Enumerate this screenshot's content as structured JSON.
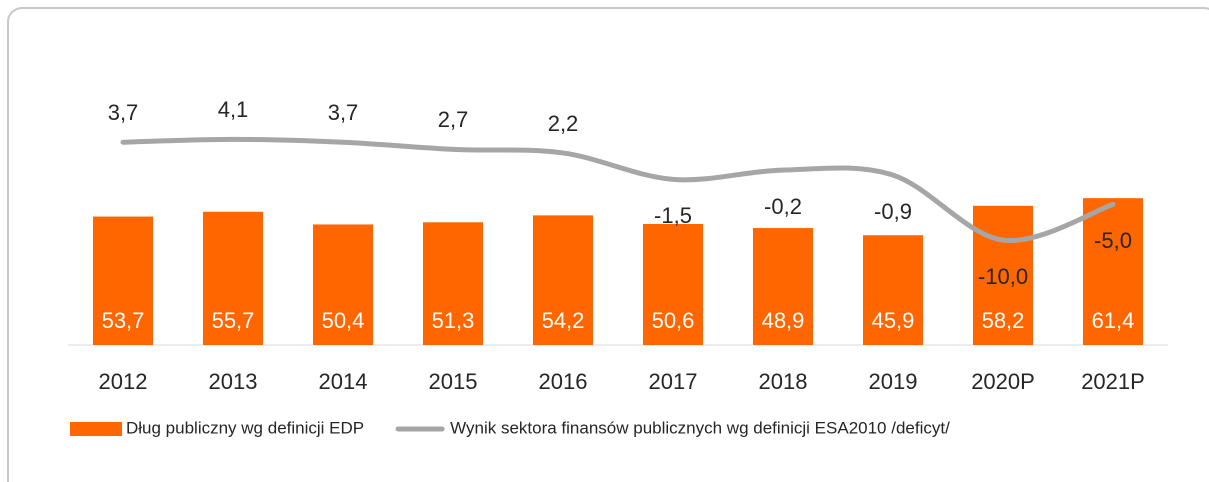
{
  "chart_data": {
    "type": "bar-line",
    "categories": [
      "2012",
      "2013",
      "2014",
      "2015",
      "2016",
      "2017",
      "2018",
      "2019",
      "2020P",
      "2021P"
    ],
    "series": [
      {
        "name": "Dług publiczny wg definicji EDP",
        "type": "bar",
        "color": "#ff6600",
        "values": [
          53.7,
          55.7,
          50.4,
          51.3,
          54.2,
          50.6,
          48.9,
          45.9,
          58.2,
          61.4
        ],
        "value_labels": [
          "53,7",
          "55,7",
          "50,4",
          "51,3",
          "54,2",
          "50,6",
          "48,9",
          "45,9",
          "58,2",
          "61,4"
        ]
      },
      {
        "name": "Wynik sektora finansów publicznych wg definicji ESA2010 /deficyt/",
        "type": "line",
        "axis": "y2",
        "color": "#a6a6a6",
        "values": [
          3.7,
          4.1,
          3.7,
          2.7,
          2.2,
          -1.5,
          -0.2,
          -0.9,
          -10.0,
          -5.0
        ],
        "value_labels": [
          "3,7",
          "4,1",
          "3,7",
          "2,7",
          "2,2",
          "-1,5",
          "-0,2",
          "-0,9",
          "-10,0",
          "-5,0"
        ]
      }
    ],
    "ylim": [
      0,
      120
    ],
    "y2lim": [
      -24.7,
      15.5
    ],
    "grid": false,
    "legend": "bottom"
  }
}
